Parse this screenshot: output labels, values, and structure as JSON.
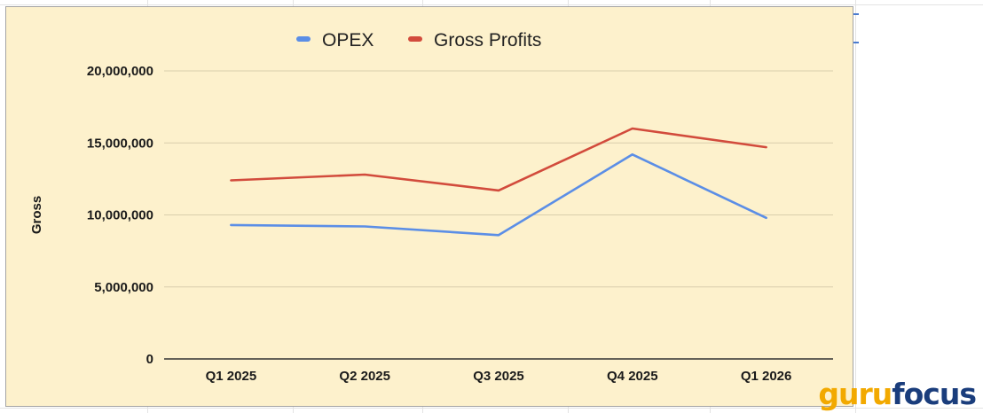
{
  "watermark": {
    "part1": "guru",
    "part2": "focus"
  },
  "chart_data": {
    "type": "line",
    "title": "",
    "xlabel": "",
    "ylabel": "Gross",
    "categories": [
      "Q1 2025",
      "Q2 2025",
      "Q3 2025",
      "Q4 2025",
      "Q1 2026"
    ],
    "ylim": [
      0,
      20000000
    ],
    "yticks": [
      0,
      5000000,
      10000000,
      15000000,
      20000000
    ],
    "ytick_labels": [
      "0",
      "5,000,000",
      "10,000,000",
      "15,000,000",
      "20,000,000"
    ],
    "grid": true,
    "legend_position": "top",
    "background": "#fdf1cc",
    "series": [
      {
        "name": "OPEX",
        "color": "#5b8ee6",
        "values": [
          9300000,
          9200000,
          8600000,
          14200000,
          9800000
        ]
      },
      {
        "name": "Gross Profits",
        "color": "#d24b3c",
        "values": [
          12400000,
          12800000,
          11700000,
          16000000,
          14700000
        ]
      }
    ]
  }
}
